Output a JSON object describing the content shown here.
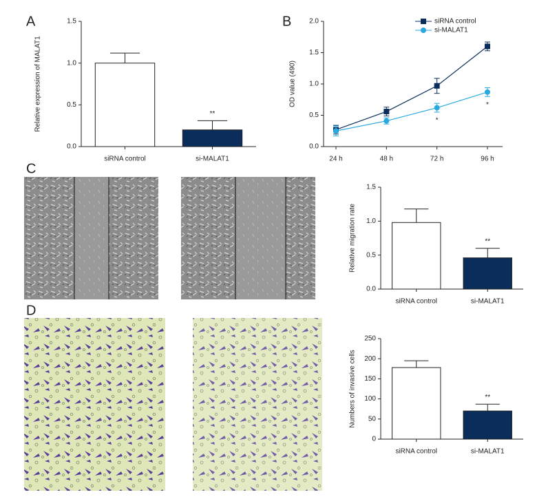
{
  "chart_data": [
    {
      "type": "bar",
      "panel": "A",
      "y_label": "Relative expression of MALAT1",
      "categories": [
        "siRNA control",
        "si-MALAT1"
      ],
      "values": [
        1.0,
        0.2
      ],
      "errors": [
        0.12,
        0.11
      ],
      "colors": [
        "#ffffff",
        "#0b2d5b"
      ],
      "ylim": [
        0,
        1.5
      ],
      "yticks": [
        {
          "value": 0,
          "label": "0.0"
        },
        {
          "value": 0.5,
          "label": "0.5"
        },
        {
          "value": 1,
          "label": "1.0"
        },
        {
          "value": 1.5,
          "label": "1.5"
        }
      ],
      "annotations": [
        {
          "category": "si-MALAT1",
          "text": "**"
        }
      ]
    },
    {
      "type": "line",
      "panel": "B",
      "y_label": "OD value (490)",
      "categories": [
        "24 h",
        "48 h",
        "72 h",
        "96 h"
      ],
      "series": [
        {
          "name": "siRNA control",
          "color": "#0b2d5b",
          "marker": "square",
          "values": [
            0.27,
            0.56,
            0.97,
            1.6
          ],
          "errors": [
            0.07,
            0.07,
            0.12,
            0.07
          ]
        },
        {
          "name": "si-MALAT1",
          "color": "#29a9e0",
          "marker": "circle",
          "values": [
            0.25,
            0.41,
            0.62,
            0.87
          ],
          "errors": [
            0.08,
            0.05,
            0.07,
            0.07
          ]
        }
      ],
      "ylim": [
        0,
        2
      ],
      "yticks": [
        {
          "value": 0,
          "label": "0.0"
        },
        {
          "value": 0.5,
          "label": "0.5"
        },
        {
          "value": 1,
          "label": "1.0"
        },
        {
          "value": 1.5,
          "label": "1.5"
        },
        {
          "value": 2,
          "label": "2.0"
        }
      ],
      "annotations": [
        {
          "x": "72 h",
          "text": "*"
        },
        {
          "x": "96 h",
          "text": "*"
        }
      ]
    },
    {
      "type": "bar",
      "panel": "C",
      "y_label": "Relative migration rate",
      "categories": [
        "siRNA control",
        "si-MALAT1"
      ],
      "values": [
        0.98,
        0.46
      ],
      "errors": [
        0.2,
        0.14
      ],
      "colors": [
        "#ffffff",
        "#0b2d5b"
      ],
      "ylim": [
        0,
        1.5
      ],
      "yticks": [
        {
          "value": 0,
          "label": "0.0"
        },
        {
          "value": 0.5,
          "label": "0.5"
        },
        {
          "value": 1,
          "label": "1.0"
        },
        {
          "value": 1.5,
          "label": "1.5"
        }
      ],
      "annotations": [
        {
          "category": "si-MALAT1",
          "text": "**"
        }
      ]
    },
    {
      "type": "bar",
      "panel": "D",
      "y_label": "Numbers of invasive cells",
      "categories": [
        "siRNA control",
        "si-MALAT1"
      ],
      "values": [
        178,
        70
      ],
      "errors": [
        17,
        17
      ],
      "colors": [
        "#ffffff",
        "#0b2d5b"
      ],
      "ylim": [
        0,
        250
      ],
      "yticks": [
        0,
        50,
        100,
        150,
        200,
        250
      ],
      "annotations": [
        {
          "category": "si-MALAT1",
          "text": "**"
        }
      ]
    }
  ]
}
